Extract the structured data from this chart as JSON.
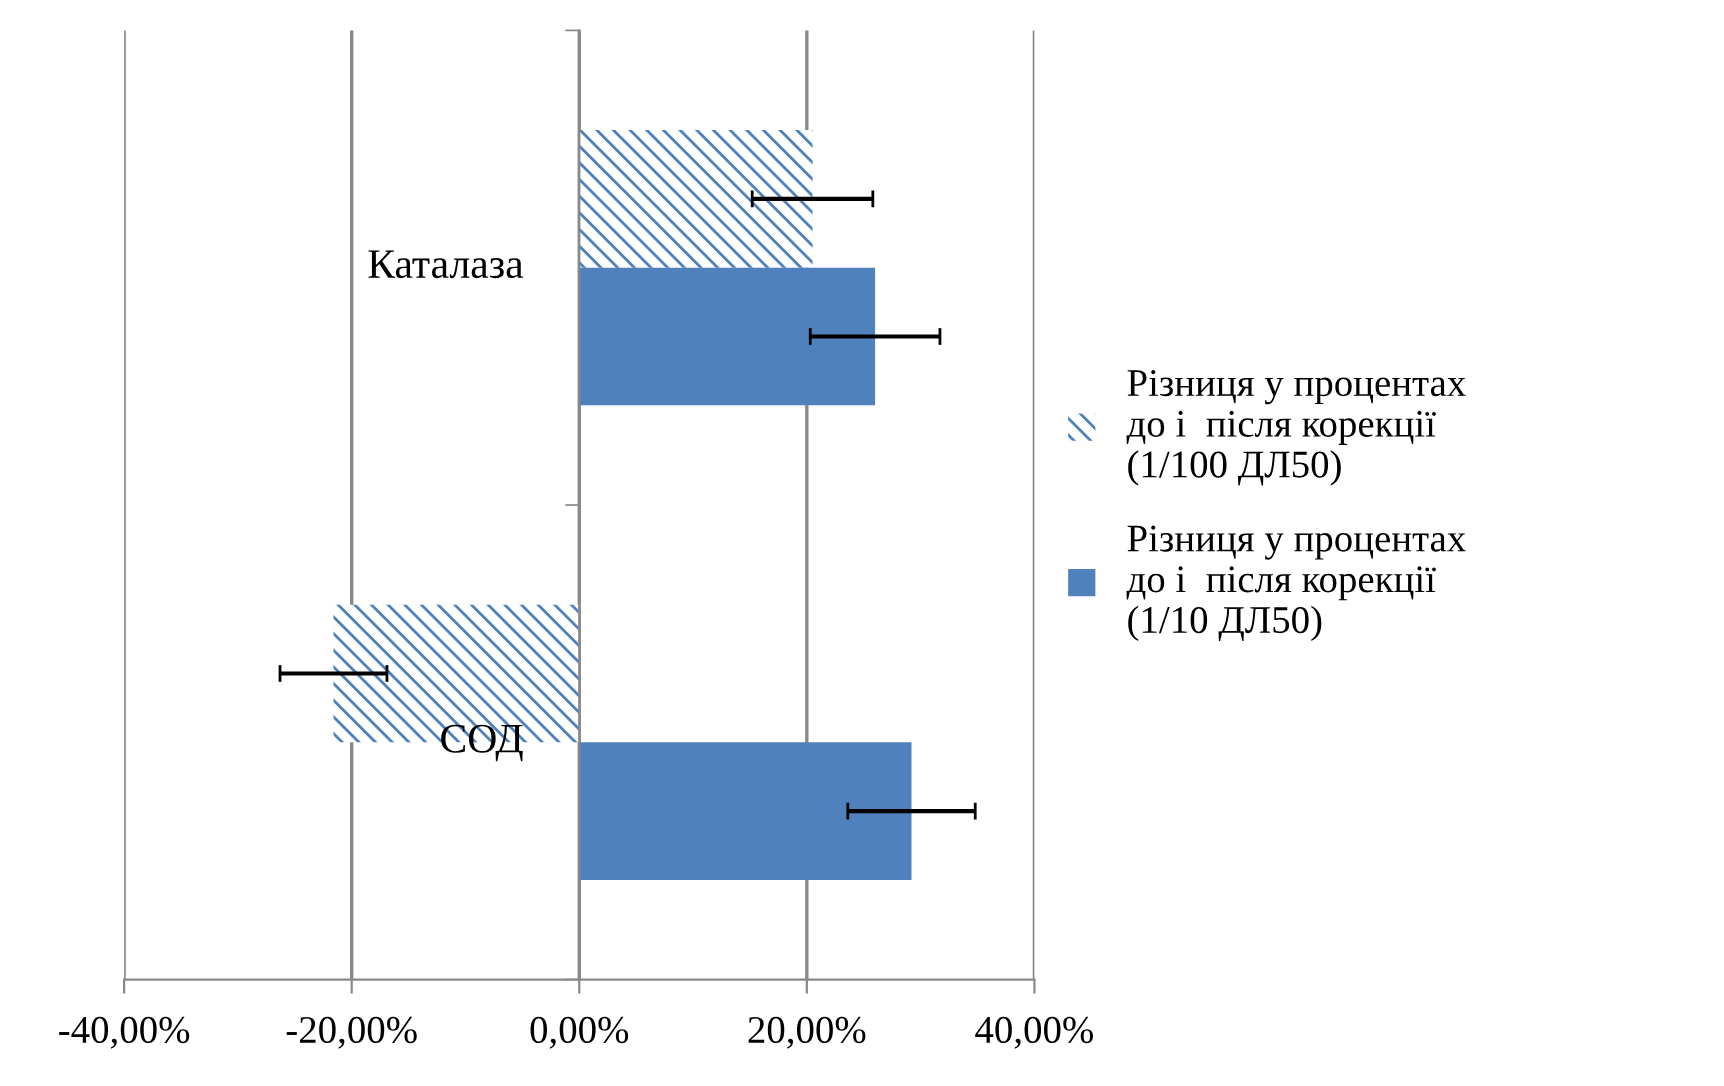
{
  "chart_data": {
    "type": "bar",
    "orientation": "horizontal",
    "categories": [
      "Каталаза",
      "СОД"
    ],
    "series": [
      {
        "name": "Різниця у процентах\nдо і  після корекції\n(1/100 ДЛ50)",
        "color": "#4f81bd",
        "values": [
          20.5,
          -21.6
        ],
        "errors": [
          5.3,
          4.7
        ]
      },
      {
        "name": "Різниця у процентах\nдо і  після корекції\n(1/10 ДЛ50)",
        "color": "#4f81bd",
        "values": [
          26.0,
          29.2
        ],
        "errors": [
          5.7,
          5.6
        ]
      }
    ],
    "xlim": [
      -40,
      40
    ],
    "xticks": [
      {
        "value": -40,
        "label": "-40,00%"
      },
      {
        "value": -20,
        "label": "-20,00%"
      },
      {
        "value": 0,
        "label": "0,00%"
      },
      {
        "value": 20,
        "label": "20,00%"
      },
      {
        "value": 40,
        "label": "40,00%"
      }
    ],
    "grid": "x",
    "legend": "right"
  }
}
